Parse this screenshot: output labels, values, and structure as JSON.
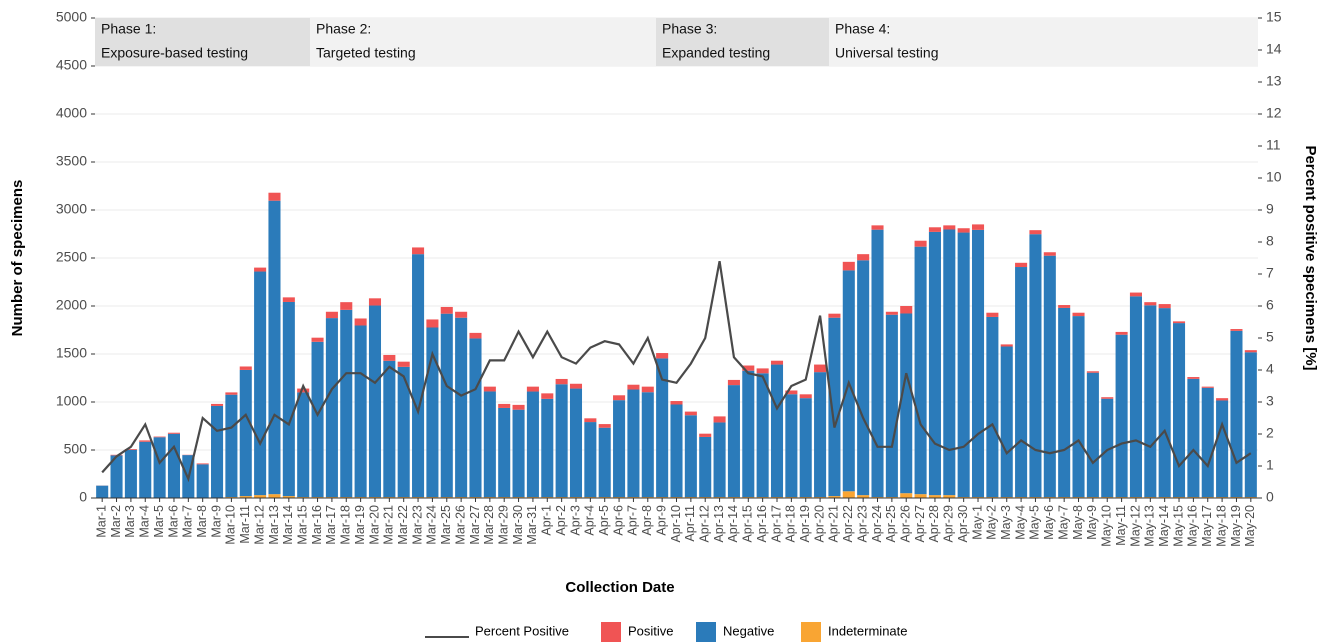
{
  "chart_data": {
    "type": "bar",
    "x_label": "Collection Date",
    "y_label": "Number of specimens",
    "y2_label": "Percent positive specimens [%]",
    "categories": [
      "Mar-1",
      "Mar-2",
      "Mar-3",
      "Mar-4",
      "Mar-5",
      "Mar-6",
      "Mar-7",
      "Mar-8",
      "Mar-9",
      "Mar-10",
      "Mar-11",
      "Mar-12",
      "Mar-13",
      "Mar-14",
      "Mar-15",
      "Mar-16",
      "Mar-17",
      "Mar-18",
      "Mar-19",
      "Mar-20",
      "Mar-21",
      "Mar-22",
      "Mar-23",
      "Mar-24",
      "Mar-25",
      "Mar-26",
      "Mar-27",
      "Mar-28",
      "Mar-29",
      "Mar-30",
      "Mar-31",
      "Apr-1",
      "Apr-2",
      "Apr-3",
      "Apr-4",
      "Apr-5",
      "Apr-6",
      "Apr-7",
      "Apr-8",
      "Apr-9",
      "Apr-10",
      "Apr-11",
      "Apr-12",
      "Apr-13",
      "Apr-14",
      "Apr-15",
      "Apr-16",
      "Apr-17",
      "Apr-18",
      "Apr-19",
      "Apr-20",
      "Apr-21",
      "Apr-22",
      "Apr-23",
      "Apr-24",
      "Apr-25",
      "Apr-26",
      "Apr-27",
      "Apr-28",
      "Apr-29",
      "Apr-30",
      "May-1",
      "May-2",
      "May-3",
      "May-4",
      "May-5",
      "May-6",
      "May-7",
      "May-8",
      "May-9",
      "May-10",
      "May-11",
      "May-12",
      "May-13",
      "May-14",
      "May-15",
      "May-16",
      "May-17",
      "May-18",
      "May-19",
      "May-20"
    ],
    "series": [
      {
        "name": "Percent Positive",
        "type": "line",
        "axis": "y2",
        "color": "#4a4a4a",
        "values": [
          0.8,
          1.3,
          1.6,
          2.3,
          1.1,
          1.6,
          0.6,
          2.5,
          2.1,
          2.2,
          2.6,
          1.7,
          2.6,
          2.3,
          3.5,
          2.6,
          3.4,
          3.9,
          3.9,
          3.6,
          4.1,
          3.8,
          2.7,
          4.5,
          3.5,
          3.2,
          3.4,
          4.3,
          4.3,
          5.2,
          4.4,
          5.2,
          4.4,
          4.2,
          4.7,
          4.9,
          4.8,
          4.2,
          5.0,
          3.7,
          3.6,
          4.2,
          5.0,
          7.4,
          4.4,
          3.9,
          3.8,
          2.8,
          3.5,
          3.7,
          5.7,
          2.2,
          3.6,
          2.5,
          1.6,
          1.6,
          3.9,
          2.3,
          1.7,
          1.5,
          1.6,
          2.0,
          2.3,
          1.4,
          1.8,
          1.5,
          1.4,
          1.5,
          1.8,
          1.1,
          1.5,
          1.7,
          1.8,
          1.6,
          2.1,
          1.0,
          1.5,
          1.0,
          2.3,
          1.1,
          1.4
        ]
      },
      {
        "name": "Positive",
        "color": "#f05454",
        "values": [
          1,
          6,
          8,
          14,
          7,
          11,
          3,
          9,
          21,
          24,
          36,
          41,
          83,
          48,
          40,
          43,
          66,
          80,
          73,
          75,
          61,
          54,
          70,
          84,
          70,
          62,
          58,
          50,
          42,
          50,
          51,
          57,
          55,
          50,
          39,
          38,
          51,
          50,
          58,
          56,
          36,
          38,
          34,
          63,
          54,
          54,
          51,
          40,
          39,
          40,
          79,
          42,
          89,
          64,
          45,
          31,
          78,
          62,
          48,
          43,
          45,
          57,
          44,
          22,
          44,
          42,
          36,
          30,
          35,
          15,
          16,
          29,
          39,
          33,
          42,
          18,
          19,
          12,
          24,
          19,
          22
        ]
      },
      {
        "name": "Negative",
        "color": "#2b7bba",
        "values": [
          129,
          444,
          502,
          586,
          633,
          669,
          447,
          351,
          954,
          1066,
          1314,
          2329,
          3057,
          2022,
          1090,
          1617,
          1864,
          1950,
          1787,
          1995,
          1419,
          1356,
          2530,
          1766,
          1910,
          1868,
          1652,
          1100,
          928,
          910,
          1099,
          1023,
          1175,
          1130,
          781,
          722,
          1009,
          1120,
          1092,
          1444,
          964,
          852,
          626,
          777,
          1166,
          1316,
          1289,
          1380,
          1071,
          1030,
          1301,
          1858,
          2301,
          2446,
          2785,
          1899,
          1872,
          2578,
          2742,
          2767,
          2755,
          2783,
          1876,
          1568,
          2396,
          2738,
          2514,
          1970,
          1885,
          1295,
          1024,
          1691,
          2091,
          1997,
          1968,
          1812,
          1231,
          1138,
          1006,
          1731,
          1508
        ]
      },
      {
        "name": "Indeterminate",
        "color": "#f9a533",
        "values": [
          0,
          0,
          0,
          0,
          0,
          0,
          0,
          0,
          5,
          10,
          20,
          30,
          40,
          20,
          10,
          10,
          10,
          10,
          10,
          10,
          10,
          10,
          10,
          10,
          10,
          10,
          10,
          10,
          10,
          10,
          10,
          10,
          10,
          10,
          10,
          10,
          10,
          10,
          10,
          10,
          10,
          10,
          10,
          10,
          10,
          10,
          10,
          10,
          10,
          10,
          10,
          20,
          70,
          30,
          10,
          10,
          50,
          40,
          30,
          30,
          10,
          10,
          10,
          10,
          10,
          10,
          10,
          10,
          10,
          10,
          10,
          10,
          10,
          10,
          10,
          10,
          10,
          10,
          10,
          10,
          10
        ]
      }
    ],
    "ylim": [
      0,
      5000
    ],
    "yticks": [
      0,
      500,
      1000,
      1500,
      2000,
      2500,
      3000,
      3500,
      4000,
      4500,
      5000
    ],
    "y2lim": [
      0,
      15
    ],
    "y2ticks": [
      0,
      1,
      2,
      3,
      4,
      5,
      6,
      7,
      8,
      9,
      10,
      11,
      12,
      13,
      14,
      15
    ],
    "grid": true,
    "legend": "bottom",
    "phases": [
      {
        "title": "Phase 1:",
        "text": "Exposure-based testing",
        "color": "#e0e0e0"
      },
      {
        "title": "Phase 2:",
        "text": "Targeted testing",
        "color": "#f2f2f2"
      },
      {
        "title": "Phase 3:",
        "text": "Expanded testing",
        "color": "#e0e0e0"
      },
      {
        "title": "Phase 4:",
        "text": "Universal testing",
        "color": "#f2f2f2"
      }
    ]
  }
}
